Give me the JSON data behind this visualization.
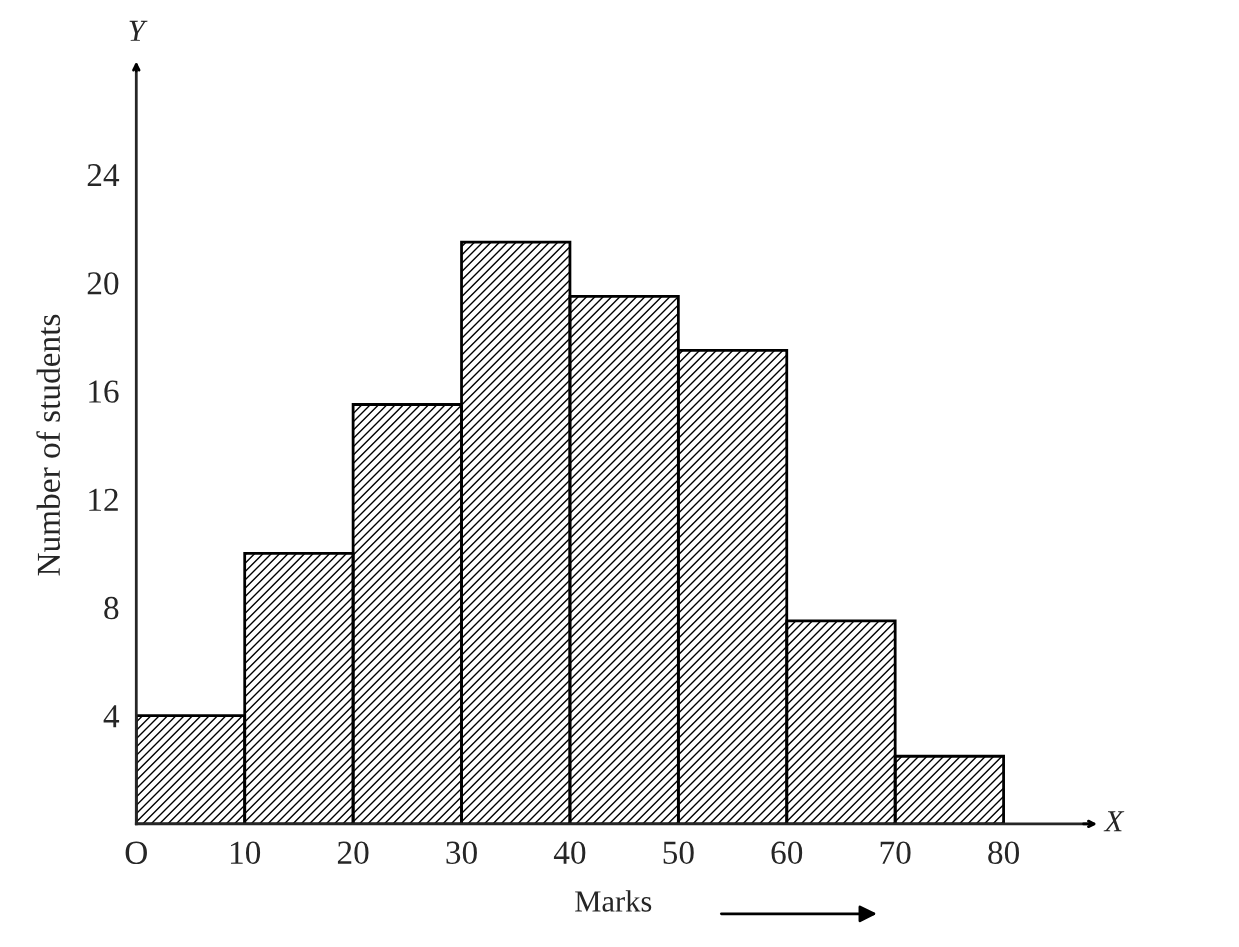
{
  "chart_data": {
    "type": "histogram",
    "xlabel": "Marks",
    "ylabel": "Number of students",
    "bins": [
      0,
      10,
      20,
      30,
      40,
      50,
      60,
      70,
      80
    ],
    "values": [
      4,
      10,
      15.5,
      21.5,
      19.5,
      17.5,
      7.5,
      2.5
    ],
    "color": "#000000",
    "xlim": [
      0,
      88
    ],
    "ylim": [
      0,
      28
    ],
    "xticks": [
      {
        "value": 0,
        "label": "O"
      },
      10,
      20,
      30,
      40,
      50,
      60,
      70,
      80
    ],
    "yticks": [
      4,
      8,
      12,
      16,
      20,
      24
    ],
    "annotations": [
      "X",
      "Y"
    ],
    "grid": false
  }
}
